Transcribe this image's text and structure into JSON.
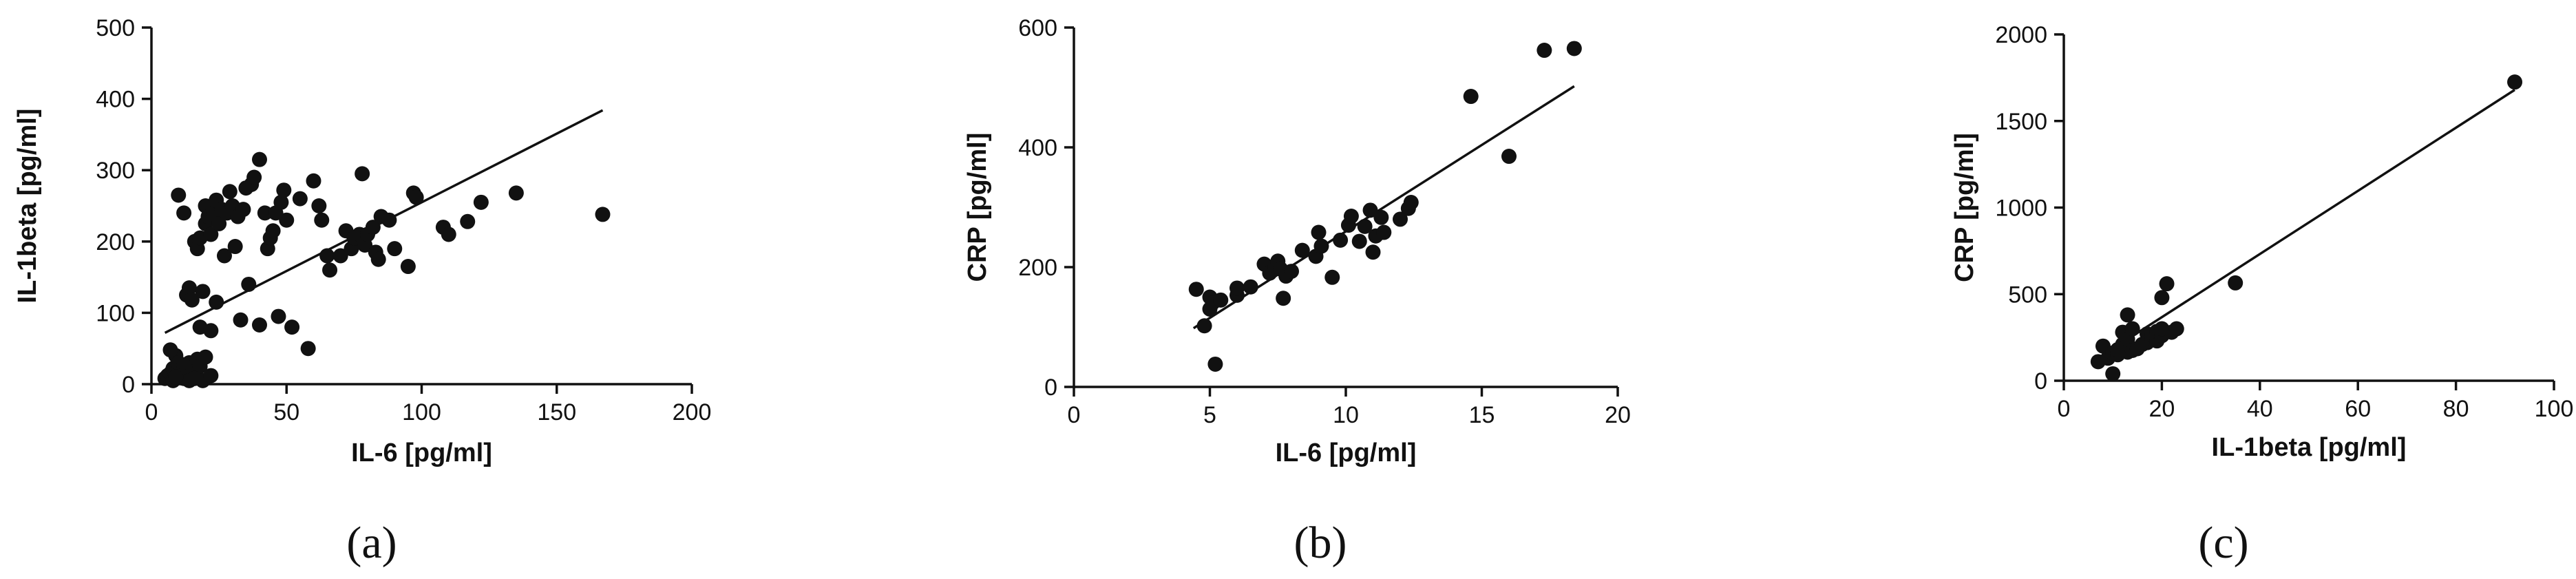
{
  "chart_data": [
    {
      "type": "scatter",
      "panel": "a",
      "xlabel": "IL-6 [pg/ml]",
      "ylabel": "IL-1beta [pg/ml]",
      "xlim": [
        0,
        200
      ],
      "ylim": [
        0,
        500
      ],
      "xticks": [
        0,
        50,
        100,
        150,
        200
      ],
      "yticks": [
        0,
        100,
        200,
        300,
        400,
        500
      ],
      "fit_line": [
        [
          5,
          72
        ],
        [
          167,
          384
        ]
      ],
      "points": [
        [
          5,
          8
        ],
        [
          6,
          12
        ],
        [
          7,
          15
        ],
        [
          8,
          22
        ],
        [
          8,
          5
        ],
        [
          9,
          40
        ],
        [
          10,
          18
        ],
        [
          10,
          30
        ],
        [
          11,
          12
        ],
        [
          12,
          8
        ],
        [
          12,
          25
        ],
        [
          13,
          18
        ],
        [
          14,
          30
        ],
        [
          15,
          12
        ],
        [
          16,
          20
        ],
        [
          17,
          35
        ],
        [
          18,
          25
        ],
        [
          19,
          5
        ],
        [
          20,
          38
        ],
        [
          22,
          12
        ],
        [
          14,
          5
        ],
        [
          16,
          8
        ],
        [
          9,
          10
        ],
        [
          7,
          48
        ],
        [
          10,
          265
        ],
        [
          12,
          240
        ],
        [
          13,
          125
        ],
        [
          14,
          135
        ],
        [
          15,
          118
        ],
        [
          16,
          200
        ],
        [
          17,
          190
        ],
        [
          18,
          205
        ],
        [
          18,
          80
        ],
        [
          19,
          130
        ],
        [
          20,
          225
        ],
        [
          20,
          250
        ],
        [
          21,
          235
        ],
        [
          22,
          210
        ],
        [
          22,
          75
        ],
        [
          23,
          240
        ],
        [
          24,
          115
        ],
        [
          24,
          258
        ],
        [
          25,
          225
        ],
        [
          26,
          245
        ],
        [
          27,
          180
        ],
        [
          28,
          240
        ],
        [
          29,
          270
        ],
        [
          30,
          250
        ],
        [
          31,
          193
        ],
        [
          32,
          235
        ],
        [
          33,
          90
        ],
        [
          34,
          245
        ],
        [
          35,
          275
        ],
        [
          36,
          140
        ],
        [
          37,
          280
        ],
        [
          38,
          290
        ],
        [
          40,
          83
        ],
        [
          40,
          315
        ],
        [
          42,
          240
        ],
        [
          43,
          190
        ],
        [
          44,
          205
        ],
        [
          45,
          215
        ],
        [
          46,
          240
        ],
        [
          47,
          95
        ],
        [
          48,
          255
        ],
        [
          49,
          272
        ],
        [
          50,
          230
        ],
        [
          52,
          80
        ],
        [
          55,
          260
        ],
        [
          58,
          50
        ],
        [
          60,
          285
        ],
        [
          62,
          250
        ],
        [
          63,
          230
        ],
        [
          65,
          180
        ],
        [
          66,
          160
        ],
        [
          70,
          180
        ],
        [
          72,
          215
        ],
        [
          74,
          190
        ],
        [
          75,
          205
        ],
        [
          77,
          210
        ],
        [
          78,
          295
        ],
        [
          79,
          195
        ],
        [
          80,
          210
        ],
        [
          82,
          220
        ],
        [
          83,
          185
        ],
        [
          84,
          175
        ],
        [
          85,
          235
        ],
        [
          88,
          230
        ],
        [
          90,
          190
        ],
        [
          95,
          165
        ],
        [
          97,
          268
        ],
        [
          98,
          262
        ],
        [
          108,
          220
        ],
        [
          110,
          210
        ],
        [
          117,
          228
        ],
        [
          122,
          255
        ],
        [
          135,
          268
        ],
        [
          167,
          238
        ]
      ]
    },
    {
      "type": "scatter",
      "panel": "b",
      "xlabel": "IL-6 [pg/ml]",
      "ylabel": "CRP [pg/ml]",
      "xlim": [
        0,
        20
      ],
      "ylim": [
        0,
        600
      ],
      "xticks": [
        0,
        5,
        10,
        15,
        20
      ],
      "yticks": [
        0,
        200,
        400,
        600
      ],
      "fit_line": [
        [
          4.4,
          98
        ],
        [
          18.4,
          502
        ]
      ],
      "points": [
        [
          4.5,
          163
        ],
        [
          4.8,
          102
        ],
        [
          5.0,
          130
        ],
        [
          5.0,
          150
        ],
        [
          5.1,
          140
        ],
        [
          5.2,
          38
        ],
        [
          5.4,
          145
        ],
        [
          6.0,
          153
        ],
        [
          6.0,
          165
        ],
        [
          6.5,
          167
        ],
        [
          7.0,
          205
        ],
        [
          7.2,
          190
        ],
        [
          7.4,
          202
        ],
        [
          7.5,
          210
        ],
        [
          7.6,
          197
        ],
        [
          7.7,
          148
        ],
        [
          7.8,
          185
        ],
        [
          8.0,
          193
        ],
        [
          8.4,
          228
        ],
        [
          8.9,
          218
        ],
        [
          9.0,
          258
        ],
        [
          9.1,
          235
        ],
        [
          9.5,
          183
        ],
        [
          9.8,
          245
        ],
        [
          10.1,
          270
        ],
        [
          10.2,
          285
        ],
        [
          10.5,
          243
        ],
        [
          10.7,
          268
        ],
        [
          10.9,
          295
        ],
        [
          11.0,
          225
        ],
        [
          11.1,
          252
        ],
        [
          11.3,
          283
        ],
        [
          11.4,
          258
        ],
        [
          12.0,
          280
        ],
        [
          12.3,
          298
        ],
        [
          12.4,
          308
        ],
        [
          14.6,
          485
        ],
        [
          16.0,
          385
        ],
        [
          17.3,
          562
        ],
        [
          18.4,
          565
        ]
      ]
    },
    {
      "type": "scatter",
      "panel": "c",
      "xlabel": "IL-1beta [pg/ml]",
      "ylabel": "CRP [pg/ml]",
      "xlim": [
        0,
        100
      ],
      "ylim": [
        0,
        2000
      ],
      "xticks": [
        0,
        20,
        40,
        60,
        80,
        100
      ],
      "yticks": [
        0,
        500,
        1000,
        1500,
        2000
      ],
      "fit_line": [
        [
          7,
          130
        ],
        [
          92,
          1680
        ]
      ],
      "points": [
        [
          7,
          110
        ],
        [
          8,
          200
        ],
        [
          9,
          130
        ],
        [
          10,
          160
        ],
        [
          10,
          40
        ],
        [
          11,
          150
        ],
        [
          11,
          180
        ],
        [
          12,
          210
        ],
        [
          12,
          280
        ],
        [
          13,
          165
        ],
        [
          13,
          240
        ],
        [
          13,
          380
        ],
        [
          14,
          300
        ],
        [
          14,
          175
        ],
        [
          15,
          185
        ],
        [
          16,
          210
        ],
        [
          17,
          220
        ],
        [
          17,
          270
        ],
        [
          18,
          240
        ],
        [
          18,
          260
        ],
        [
          19,
          230
        ],
        [
          19,
          285
        ],
        [
          20,
          260
        ],
        [
          20,
          300
        ],
        [
          20,
          480
        ],
        [
          21,
          560
        ],
        [
          22,
          280
        ],
        [
          23,
          300
        ],
        [
          35,
          565
        ],
        [
          92,
          1725
        ]
      ]
    }
  ],
  "panel_labels": [
    "(a)",
    "(b)",
    "(c)"
  ]
}
